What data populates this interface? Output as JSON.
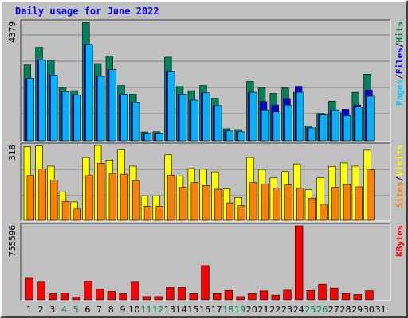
{
  "title": "Daily usage for June 2022",
  "chart_data": [
    {
      "type": "bar",
      "panel": "hits-files-pages",
      "ymax_label": "4379",
      "ylim": [
        0,
        4379
      ],
      "grid": true,
      "legend": [
        {
          "text": "Pages",
          "color": "#00ccff"
        },
        {
          "text": "/",
          "color": "#000000"
        },
        {
          "text": "Files",
          "color": "#0000ff"
        },
        {
          "text": "/",
          "color": "#000000"
        },
        {
          "text": "Hits",
          "color": "#008040"
        }
      ],
      "series": [
        {
          "name": "Hits",
          "color": "#00805c",
          "values": [
            2800,
            3450,
            2950,
            1950,
            1850,
            4370,
            2850,
            3130,
            2040,
            1720,
            320,
            330,
            3090,
            2000,
            1850,
            2040,
            1570,
            440,
            410,
            2190,
            1950,
            1750,
            1950,
            1790,
            540,
            1010,
            1460,
            1040,
            1790,
            2460
          ]
        },
        {
          "name": "Files",
          "color": "#0000cc",
          "values": [
            2300,
            2990,
            2430,
            1810,
            1700,
            3560,
            2380,
            2630,
            1720,
            1430,
            270,
            280,
            2570,
            1720,
            1500,
            1770,
            1300,
            360,
            330,
            1790,
            1450,
            1320,
            1560,
            2010,
            470,
            960,
            1140,
            1160,
            1320,
            1870
          ]
        },
        {
          "name": "Pages",
          "color": "#00b3ff",
          "values": [
            2300,
            2990,
            2430,
            1810,
            1700,
            3560,
            2380,
            2630,
            1720,
            1430,
            270,
            280,
            2570,
            1720,
            1500,
            1770,
            1300,
            360,
            330,
            1790,
            1140,
            1070,
            1320,
            1790,
            470,
            950,
            1140,
            930,
            1240,
            1650
          ]
        }
      ]
    },
    {
      "type": "bar",
      "panel": "visits-sites",
      "ymax_label": "318",
      "ylim": [
        0,
        318
      ],
      "grid": true,
      "legend": [
        {
          "text": "Sites",
          "color": "#ff8000"
        },
        {
          "text": "/",
          "color": "#000000"
        },
        {
          "text": "Visits",
          "color": "#ffff00"
        }
      ],
      "series": [
        {
          "name": "Visits",
          "color": "#ffff00",
          "values": [
            312,
            316,
            230,
            120,
            78,
            267,
            318,
            256,
            300,
            230,
            104,
            104,
            278,
            188,
            220,
            217,
            206,
            134,
            97,
            267,
            216,
            180,
            207,
            240,
            130,
            180,
            229,
            244,
            230,
            298
          ]
        },
        {
          "name": "Sites",
          "color": "#ff8000",
          "values": [
            190,
            218,
            171,
            80,
            48,
            190,
            242,
            200,
            196,
            169,
            60,
            60,
            192,
            140,
            160,
            148,
            132,
            74,
            62,
            160,
            154,
            136,
            150,
            136,
            94,
            68,
            140,
            152,
            142,
            214
          ]
        }
      ]
    },
    {
      "type": "bar",
      "panel": "kbytes",
      "ymax_label": "755596",
      "ylim": [
        0,
        755596
      ],
      "grid": false,
      "legend": [
        {
          "text": "KBytes",
          "color": "#ff0000"
        }
      ],
      "series": [
        {
          "name": "KBytes",
          "color": "#ff0000",
          "values": [
            220000,
            180000,
            63000,
            70000,
            30000,
            190000,
            110000,
            85000,
            63000,
            180000,
            33000,
            33000,
            126000,
            126000,
            63000,
            350000,
            63000,
            95000,
            33000,
            63000,
            90000,
            47000,
            98000,
            755596,
            95000,
            161000,
            120000,
            63000,
            53000,
            93000
          ]
        }
      ]
    }
  ],
  "x_axis": {
    "labels": [
      "1",
      "2",
      "3",
      "4",
      "5",
      "6",
      "7",
      "8",
      "9",
      "10",
      "11",
      "12",
      "13",
      "14",
      "15",
      "16",
      "17",
      "18",
      "19",
      "20",
      "21",
      "22",
      "23",
      "24",
      "25",
      "26",
      "27",
      "28",
      "29",
      "30",
      "31"
    ],
    "weekday_color": "#000000",
    "weekend_color": "#008040",
    "weekend_days": [
      4,
      5,
      11,
      12,
      18,
      19,
      25,
      26
    ]
  }
}
